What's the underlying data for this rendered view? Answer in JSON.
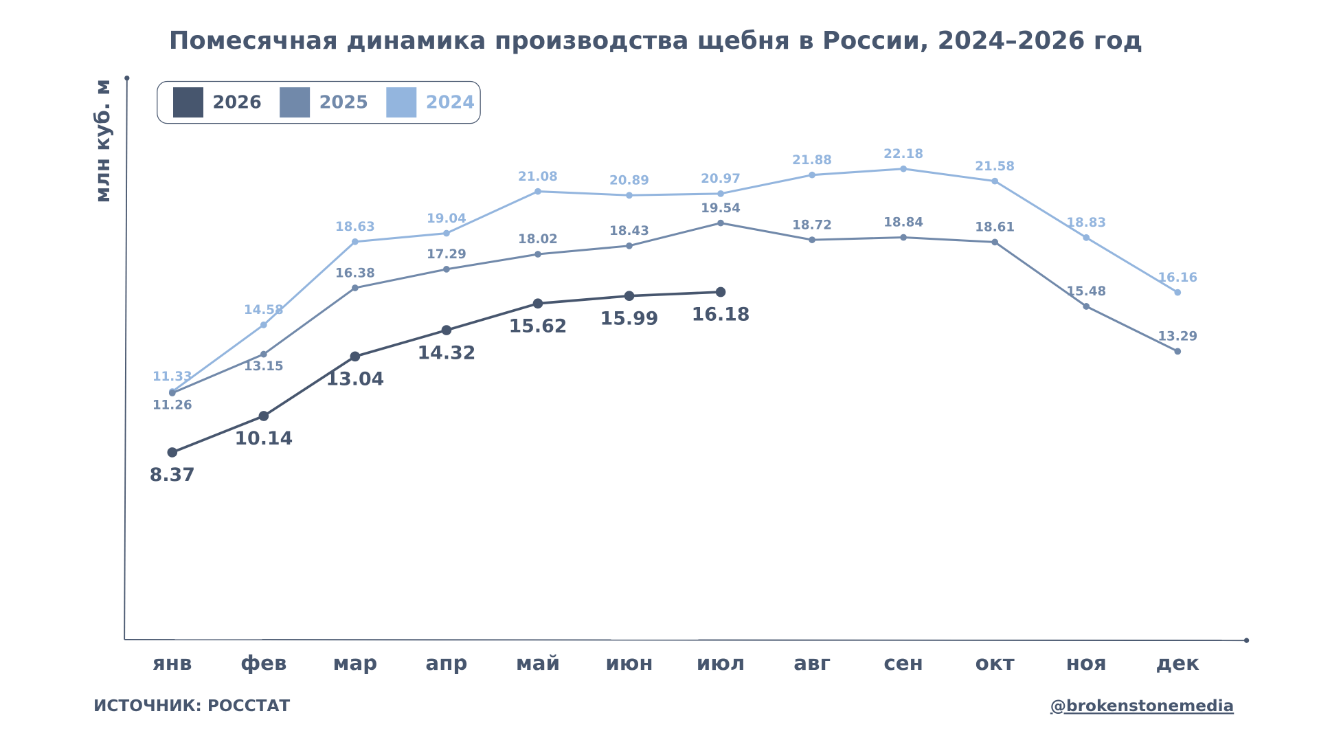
{
  "chart_data": {
    "type": "line",
    "title": "Помесячная динамика производства щебня в России, 2024–2026 год",
    "y_label": "млн куб. м",
    "source": "ИСТОЧНИК: РОССТАТ",
    "credit": "@brokenstonemedia",
    "categories": [
      "янв",
      "фев",
      "мар",
      "апр",
      "май",
      "июн",
      "июл",
      "авг",
      "сен",
      "окт",
      "ноя",
      "дек"
    ],
    "ylim": [
      -0.75,
      26.6
    ],
    "legend": "top-left",
    "series": [
      {
        "name": "2026",
        "color": "#47566e",
        "values": [
          8.37,
          10.14,
          13.04,
          14.32,
          15.62,
          15.99,
          16.18,
          null,
          null,
          null,
          null,
          null
        ]
      },
      {
        "name": "2025",
        "color": "#7189aa",
        "values": [
          11.26,
          13.15,
          16.38,
          17.29,
          18.02,
          18.43,
          19.54,
          18.72,
          18.84,
          18.61,
          15.48,
          13.29
        ]
      },
      {
        "name": "2024",
        "color": "#93b5de",
        "values": [
          11.33,
          14.58,
          18.63,
          19.04,
          21.08,
          20.89,
          20.97,
          21.88,
          22.18,
          21.58,
          18.83,
          16.16
        ]
      }
    ]
  }
}
